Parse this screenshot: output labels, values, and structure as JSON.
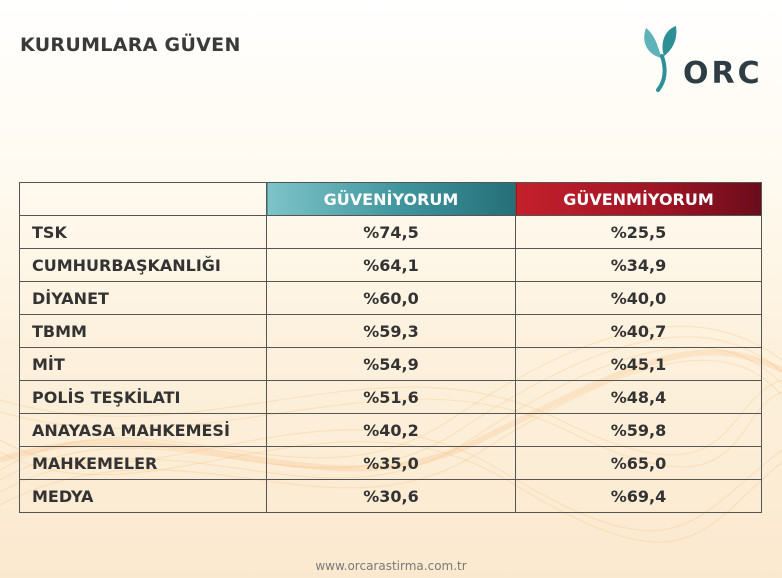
{
  "title": "KURUMLARA GÜVEN",
  "logo": {
    "text": "ORC",
    "brand_color": "#2e8f97"
  },
  "table": {
    "headers": [
      "",
      "GÜVENİYORUM",
      "GÜVENMİYORUM"
    ],
    "rows": [
      [
        "TSK",
        "%74,5",
        "%25,5"
      ],
      [
        "CUMHURBAŞKANLIĞI",
        "%64,1",
        "%34,9"
      ],
      [
        "DİYANET",
        "%60,0",
        "%40,0"
      ],
      [
        "TBMM",
        "%59,3",
        "%40,7"
      ],
      [
        "MİT",
        "%54,9",
        "%45,1"
      ],
      [
        "POLİS TEŞKİLATI",
        "%51,6",
        "%48,4"
      ],
      [
        "ANAYASA MAHKEMESİ",
        "%40,2",
        "%59,8"
      ],
      [
        "MAHKEMELER",
        "%35,0",
        "%65,0"
      ],
      [
        "MEDYA",
        "%30,6",
        "%69,4"
      ]
    ]
  },
  "colors": {
    "positive_header": "#3f949c",
    "negative_header": "#a3162a"
  },
  "footer": "www.orcarastirma.com.tr"
}
